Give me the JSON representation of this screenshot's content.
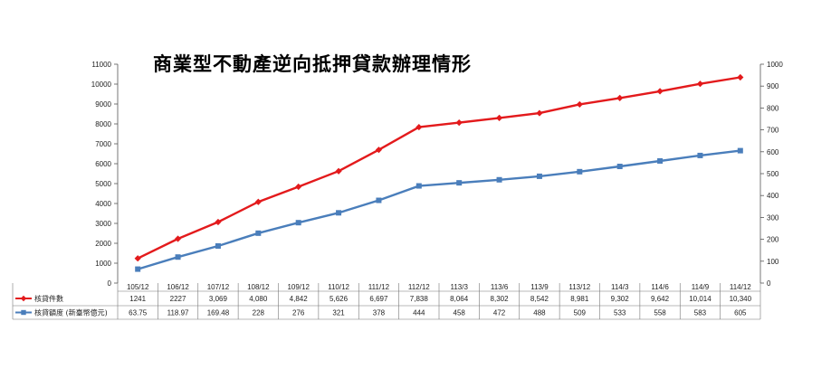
{
  "chart_data": {
    "type": "line",
    "title": "商業型不動產逆向抵押貸款辦理情形",
    "categories": [
      "105/12",
      "106/12",
      "107/12",
      "108/12",
      "109/12",
      "110/12",
      "111/12",
      "112/12",
      "113/3",
      "113/6",
      "113/9",
      "113/12",
      "114/3",
      "114/6",
      "114/9",
      "114/12"
    ],
    "left_axis": {
      "ylim": [
        0,
        11000
      ],
      "ticks": [
        "0",
        "1000",
        "2000",
        "3000",
        "4000",
        "5000",
        "6000",
        "7000",
        "8000",
        "9000",
        "10000",
        "11000"
      ]
    },
    "right_axis": {
      "ylim": [
        0,
        1000
      ],
      "ticks": [
        "0",
        "100",
        "200",
        "300",
        "400",
        "500",
        "600",
        "700",
        "800",
        "900",
        "1000"
      ]
    },
    "series": [
      {
        "name": "核貸件數",
        "axis": "left",
        "color": "#e31a1c",
        "marker": "diamond",
        "values": [
          1241,
          2227,
          3069,
          4080,
          4842,
          5626,
          6697,
          7838,
          8064,
          8302,
          8542,
          8981,
          9302,
          9642,
          10014,
          10340
        ],
        "labels": [
          "1241",
          "2227",
          "3,069",
          "4,080",
          "4,842",
          "5,626",
          "6,697",
          "7,838",
          "8,064",
          "8,302",
          "8,542",
          "8,981",
          "9,302",
          "9,642",
          "10,014",
          "10,340"
        ]
      },
      {
        "name": "核貸額度 (新臺幣億元)",
        "axis": "right",
        "color": "#4a7ebb",
        "marker": "square",
        "values": [
          63.75,
          118.97,
          169.48,
          228,
          276,
          321,
          378,
          444,
          458,
          472,
          488,
          509,
          533,
          558,
          583,
          605
        ],
        "labels": [
          "63.75",
          "118.97",
          "169.48",
          "228",
          "276",
          "321",
          "378",
          "444",
          "458",
          "472",
          "488",
          "509",
          "533",
          "558",
          "583",
          "605"
        ]
      }
    ],
    "grid": false,
    "legend": "data-table"
  }
}
